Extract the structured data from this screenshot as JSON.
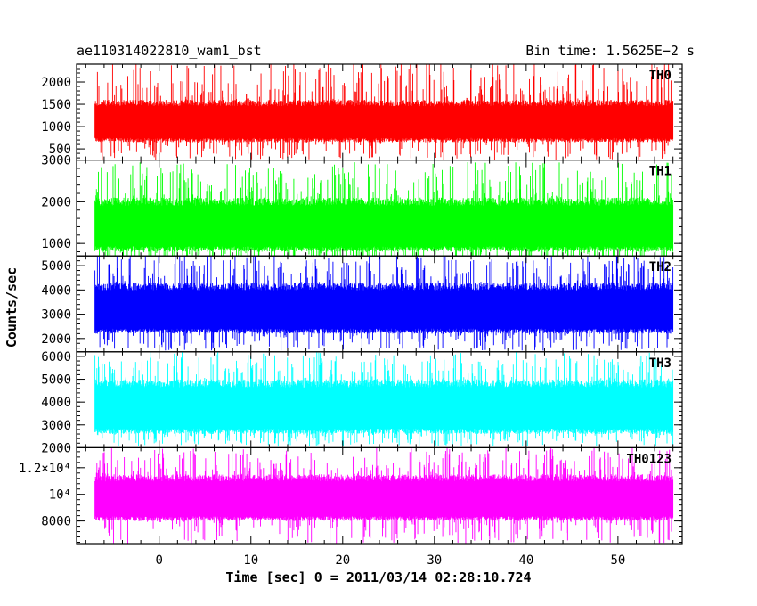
{
  "header": {
    "left_title": "ae110314022810_wam1_bst",
    "right_title": "Bin time: 1.5625E−2 s"
  },
  "chart_data": {
    "type": "line",
    "title": "ae110314022810_wam1_bst",
    "subtitle": "Bin time: 1.5625E−2 s",
    "xlabel": "Time [sec] 0 = 2011/03/14 02:28:10.724",
    "ylabel": "Counts/sec",
    "xlim": [
      -9,
      57
    ],
    "data_x_range": [
      -7,
      56
    ],
    "x_ticks": [
      "0",
      "10",
      "20",
      "30",
      "40",
      "50"
    ],
    "x_tick_values": [
      0,
      10,
      20,
      30,
      40,
      50
    ],
    "grid": false,
    "panels": [
      {
        "name": "TH0",
        "color": "#ff0000",
        "ylim": [
          250,
          2400
        ],
        "y_tick_values": [
          500,
          1000,
          1500,
          2000
        ],
        "y_tick_labels": [
          "500",
          "1000",
          "1500",
          "2000"
        ],
        "typical_low": 650,
        "typical_high": 1600,
        "peak_high": 2450,
        "min_low": 250
      },
      {
        "name": "TH1",
        "color": "#00ff00",
        "ylim": [
          700,
          3000
        ],
        "y_tick_values": [
          1000,
          2000,
          3000
        ],
        "y_tick_labels": [
          "1000",
          "2000",
          "3000"
        ],
        "typical_low": 800,
        "typical_high": 2100,
        "peak_high": 2950,
        "min_low": 380
      },
      {
        "name": "TH2",
        "color": "#0000ff",
        "ylim": [
          1450,
          5400
        ],
        "y_tick_values": [
          2000,
          3000,
          4000,
          5000
        ],
        "y_tick_labels": [
          "2000",
          "3000",
          "4000",
          "5000"
        ],
        "typical_low": 2200,
        "typical_high": 4300,
        "peak_high": 5500,
        "min_low": 1500
      },
      {
        "name": "TH3",
        "color": "#00ffff",
        "ylim": [
          2000,
          6200
        ],
        "y_tick_values": [
          2000,
          3000,
          4000,
          5000,
          6000
        ],
        "y_tick_labels": [
          "2000",
          "3000",
          "4000",
          "5000",
          "6000"
        ],
        "typical_low": 2600,
        "typical_high": 5000,
        "peak_high": 6200,
        "min_low": 2050
      },
      {
        "name": "TH0123",
        "color": "#ff00ff",
        "ylim": [
          6300,
          13500
        ],
        "y_tick_values": [
          8000,
          10000,
          12000
        ],
        "y_tick_labels": [
          "8000",
          "10⁴",
          "1.2×10⁴"
        ],
        "typical_low": 8000,
        "typical_high": 11500,
        "peak_high": 13500,
        "min_low": 6300
      }
    ]
  }
}
